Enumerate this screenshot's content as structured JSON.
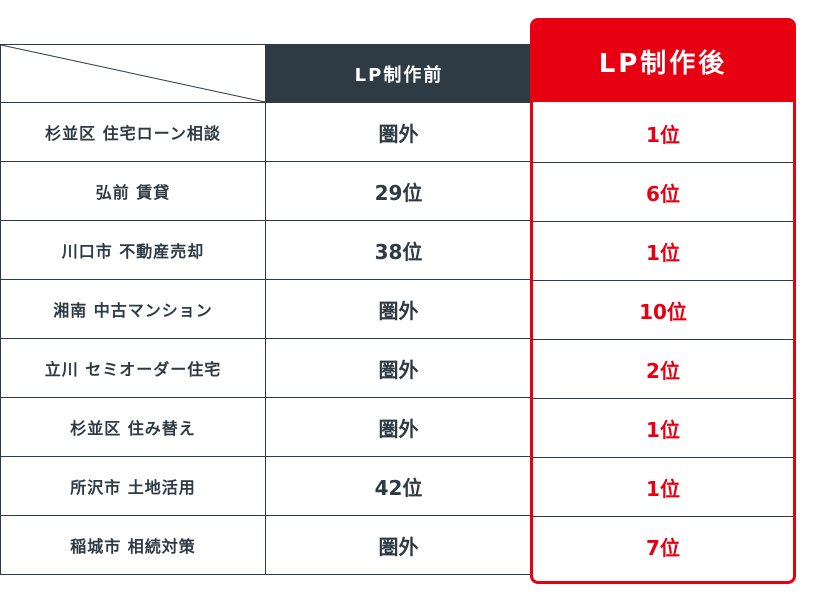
{
  "header": {
    "before_label": "LP制作前",
    "after_label": "LP制作後"
  },
  "rows": [
    {
      "keyword": "杉並区 住宅ローン相談",
      "before": "圏外",
      "after": "1位"
    },
    {
      "keyword": "弘前 賃貸",
      "before": "29位",
      "after": "6位"
    },
    {
      "keyword": "川口市 不動産売却",
      "before": "38位",
      "after": "1位"
    },
    {
      "keyword": "湘南 中古マンション",
      "before": "圏外",
      "after": "10位"
    },
    {
      "keyword": "立川 セミオーダー住宅",
      "before": "圏外",
      "after": "2位"
    },
    {
      "keyword": "杉並区 住み替え",
      "before": "圏外",
      "after": "1位"
    },
    {
      "keyword": "所沢市 土地活用",
      "before": "42位",
      "after": "1位"
    },
    {
      "keyword": "稲城市 相続対策",
      "before": "圏外",
      "after": "7位"
    }
  ],
  "colors": {
    "dark": "#2e3a44",
    "accent": "#e60012"
  }
}
